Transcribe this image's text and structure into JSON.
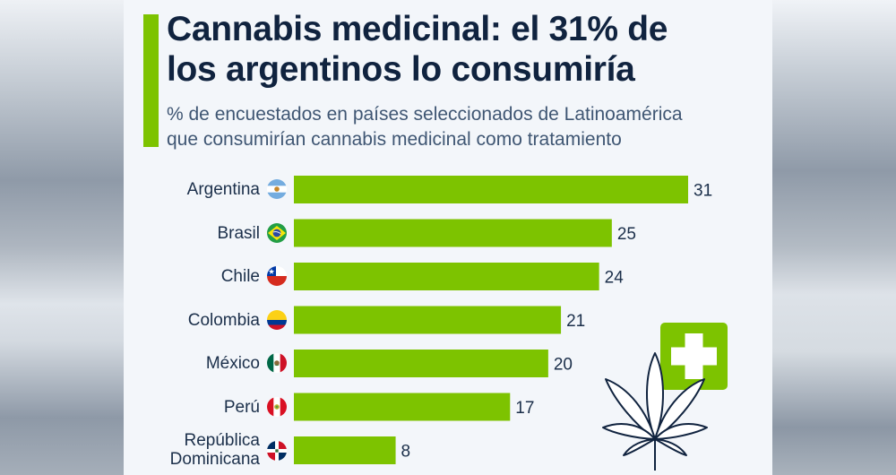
{
  "header": {
    "title_line1": "Cannabis medicinal: el 31% de",
    "title_line2": "los argentinos lo consumiría",
    "subtitle_line1": "% de encuestados en países seleccionados de Latinoamérica",
    "subtitle_line2": "que consumirían cannabis medicinal como tratamiento"
  },
  "colors": {
    "accent": "#7dc300",
    "title": "#10233f",
    "text": "#1b2f4a"
  },
  "icons": {
    "illustration": [
      "cannabis-leaf-icon",
      "medical-cross-icon"
    ]
  },
  "chart_data": {
    "type": "bar",
    "orientation": "horizontal",
    "title": "Cannabis medicinal: el 31% de los argentinos lo consumiría",
    "subtitle": "% de encuestados en países seleccionados de Latinoamérica que consumirían cannabis medicinal como tratamiento",
    "categories": [
      "Argentina",
      "Brasil",
      "Chile",
      "Colombia",
      "México",
      "Perú",
      "República Dominicana"
    ],
    "category_lines": [
      [
        "Argentina"
      ],
      [
        "Brasil"
      ],
      [
        "Chile"
      ],
      [
        "Colombia"
      ],
      [
        "México"
      ],
      [
        "Perú"
      ],
      [
        "República",
        "Dominicana"
      ]
    ],
    "flags": [
      "flag-argentina",
      "flag-brazil",
      "flag-chile",
      "flag-colombia",
      "flag-mexico",
      "flag-peru",
      "flag-dominican-republic"
    ],
    "values": [
      31,
      25,
      24,
      21,
      20,
      17,
      8
    ],
    "value_labels": [
      "31",
      "25",
      "24",
      "21",
      "20",
      "17",
      "8"
    ],
    "xlim": [
      0,
      31
    ],
    "xlabel": "",
    "ylabel": "",
    "grid": false,
    "legend": "none"
  }
}
